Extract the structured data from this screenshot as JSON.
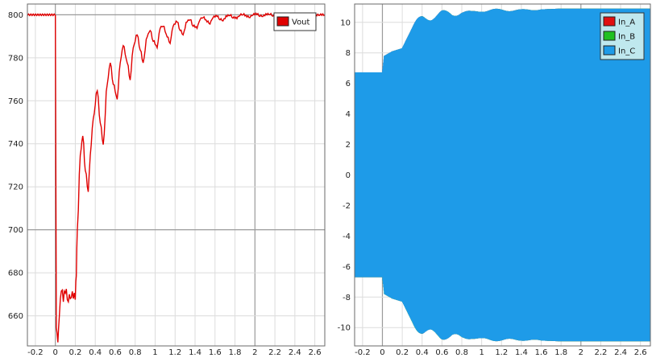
{
  "chart_data": [
    {
      "type": "line",
      "title": "",
      "xlabel": "",
      "ylabel": "",
      "xlim": [
        -0.28,
        2.7
      ],
      "ylim": [
        646,
        805
      ],
      "x_ticks": [
        -0.2,
        0,
        0.2,
        0.4,
        0.6,
        0.8,
        1,
        1.2,
        1.4,
        1.6,
        1.8,
        2,
        2.2,
        2.4,
        2.6
      ],
      "x_tick_labels": [
        "-0.2",
        "0",
        "0.2",
        "0.4",
        "0.6",
        "0.8",
        "1",
        "1.2",
        "1.4",
        "1.6",
        "1.8",
        "2",
        "2.2",
        "2.4",
        "2.6"
      ],
      "y_ticks": [
        660,
        680,
        700,
        720,
        740,
        760,
        780,
        800
      ],
      "y_tick_labels": [
        "660",
        "680",
        "700",
        "720",
        "740",
        "760",
        "780",
        "800"
      ],
      "grid": true,
      "legend_position": "top-right",
      "series": [
        {
          "name": "Vout",
          "color": "#e00000",
          "x": [
            -0.28,
            0.0,
            0.01,
            0.025,
            0.04,
            0.06,
            0.08,
            0.1,
            0.13,
            0.16,
            0.2,
            0.21,
            0.22,
            0.25,
            0.275,
            0.3,
            0.33,
            0.35,
            0.38,
            0.42,
            0.45,
            0.48,
            0.52,
            0.55,
            0.58,
            0.62,
            0.65,
            0.68,
            0.72,
            0.75,
            0.78,
            0.82,
            0.85,
            0.88,
            0.92,
            0.95,
            0.98,
            1.02,
            1.05,
            1.08,
            1.12,
            1.15,
            1.18,
            1.22,
            1.25,
            1.28,
            1.32,
            1.35,
            1.38,
            1.42,
            1.45,
            1.48,
            1.52,
            1.55,
            1.58,
            1.62,
            1.65,
            1.68,
            1.72,
            1.75,
            1.78,
            1.82,
            1.85,
            1.88,
            1.92,
            1.95,
            1.98,
            2.02,
            2.05,
            2.08,
            2.12,
            2.15,
            2.18,
            2.22,
            2.25,
            2.28,
            2.32,
            2.35,
            2.38,
            2.42,
            2.45,
            2.48,
            2.52,
            2.55,
            2.58,
            2.62,
            2.65,
            2.7
          ],
          "y": [
            800,
            800,
            655,
            648,
            660,
            673,
            668,
            672,
            668,
            670,
            669,
            680,
            700,
            735,
            744,
            728,
            718,
            735,
            752,
            765,
            750,
            740,
            768,
            778,
            768,
            761,
            778,
            786,
            778,
            770,
            785,
            791,
            784,
            778,
            790,
            793,
            788,
            785,
            794,
            795,
            790,
            787,
            795,
            797,
            793,
            791,
            797,
            798,
            795,
            794,
            798,
            799,
            797,
            796,
            799,
            799.5,
            798,
            797.5,
            799.5,
            800,
            798.8,
            798.5,
            800,
            800.3,
            799.3,
            799,
            800.2,
            800.4,
            799.6,
            799.5,
            800.3,
            800.4,
            799.7,
            799.6,
            800.2,
            800.3,
            799.8,
            799.7,
            800.2,
            800.2,
            799.8,
            799.8,
            800.1,
            800.1,
            799.9,
            799.9,
            800.1,
            800
          ]
        }
      ]
    },
    {
      "type": "line",
      "title": "",
      "xlabel": "",
      "ylabel": "",
      "xlim": [
        -0.28,
        2.7
      ],
      "ylim": [
        -11.2,
        11.2
      ],
      "x_ticks": [
        -0.2,
        0,
        0.2,
        0.4,
        0.6,
        0.8,
        1,
        1.2,
        1.4,
        1.6,
        1.8,
        2,
        2.2,
        2.4,
        2.6
      ],
      "x_tick_labels": [
        "-0.2",
        "0",
        "0.2",
        "0.4",
        "0.6",
        "0.8",
        "1",
        "1.2",
        "1.4",
        "1.6",
        "1.8",
        "2",
        "2.2",
        "2.4",
        "2.6"
      ],
      "y_ticks": [
        -10,
        -8,
        -6,
        -4,
        -2,
        0,
        2,
        4,
        6,
        8,
        10
      ],
      "y_tick_labels": [
        "-10",
        "-8",
        "-6",
        "-4",
        "-2",
        "0",
        "2",
        "4",
        "6",
        "8",
        "10"
      ],
      "grid": true,
      "legend_position": "top-right",
      "series": [
        {
          "name": "In_A",
          "color": "#e01010",
          "envelope_x": [
            -0.28,
            0.0,
            0.02,
            0.1,
            0.2,
            0.3,
            0.4,
            0.5,
            0.6,
            0.7,
            0.8,
            0.9,
            1.0,
            1.2,
            1.4,
            1.6,
            1.8,
            2.0,
            2.2,
            2.4,
            2.7
          ],
          "envelope_amplitude": [
            6.7,
            6.7,
            7.8,
            8.1,
            8.3,
            9.6,
            10.2,
            10.4,
            10.6,
            10.5,
            10.7,
            10.6,
            10.8,
            10.8,
            10.8,
            10.85,
            10.9,
            10.9,
            10.9,
            10.9,
            10.9
          ]
        },
        {
          "name": "In_B",
          "color": "#20c020",
          "envelope_x": [
            -0.28,
            0.0,
            0.02,
            0.1,
            0.2,
            0.3,
            0.4,
            0.5,
            0.6,
            0.7,
            0.8,
            0.9,
            1.0,
            1.2,
            1.4,
            1.6,
            1.8,
            2.0,
            2.2,
            2.4,
            2.7
          ],
          "envelope_amplitude": [
            6.7,
            6.7,
            7.8,
            8.1,
            8.3,
            9.6,
            10.2,
            10.4,
            10.6,
            10.5,
            10.7,
            10.6,
            10.8,
            10.8,
            10.8,
            10.85,
            10.9,
            10.9,
            10.9,
            10.9,
            10.9
          ]
        },
        {
          "name": "In_C",
          "color": "#1e9be8",
          "envelope_x": [
            -0.28,
            0.0,
            0.02,
            0.1,
            0.2,
            0.3,
            0.4,
            0.5,
            0.6,
            0.7,
            0.8,
            0.9,
            1.0,
            1.2,
            1.4,
            1.6,
            1.8,
            2.0,
            2.2,
            2.4,
            2.7
          ],
          "envelope_amplitude": [
            6.7,
            6.7,
            7.8,
            8.1,
            8.3,
            9.6,
            10.2,
            10.4,
            10.6,
            10.5,
            10.7,
            10.6,
            10.8,
            10.8,
            10.8,
            10.85,
            10.9,
            10.9,
            10.9,
            10.9,
            10.9
          ]
        }
      ]
    }
  ]
}
